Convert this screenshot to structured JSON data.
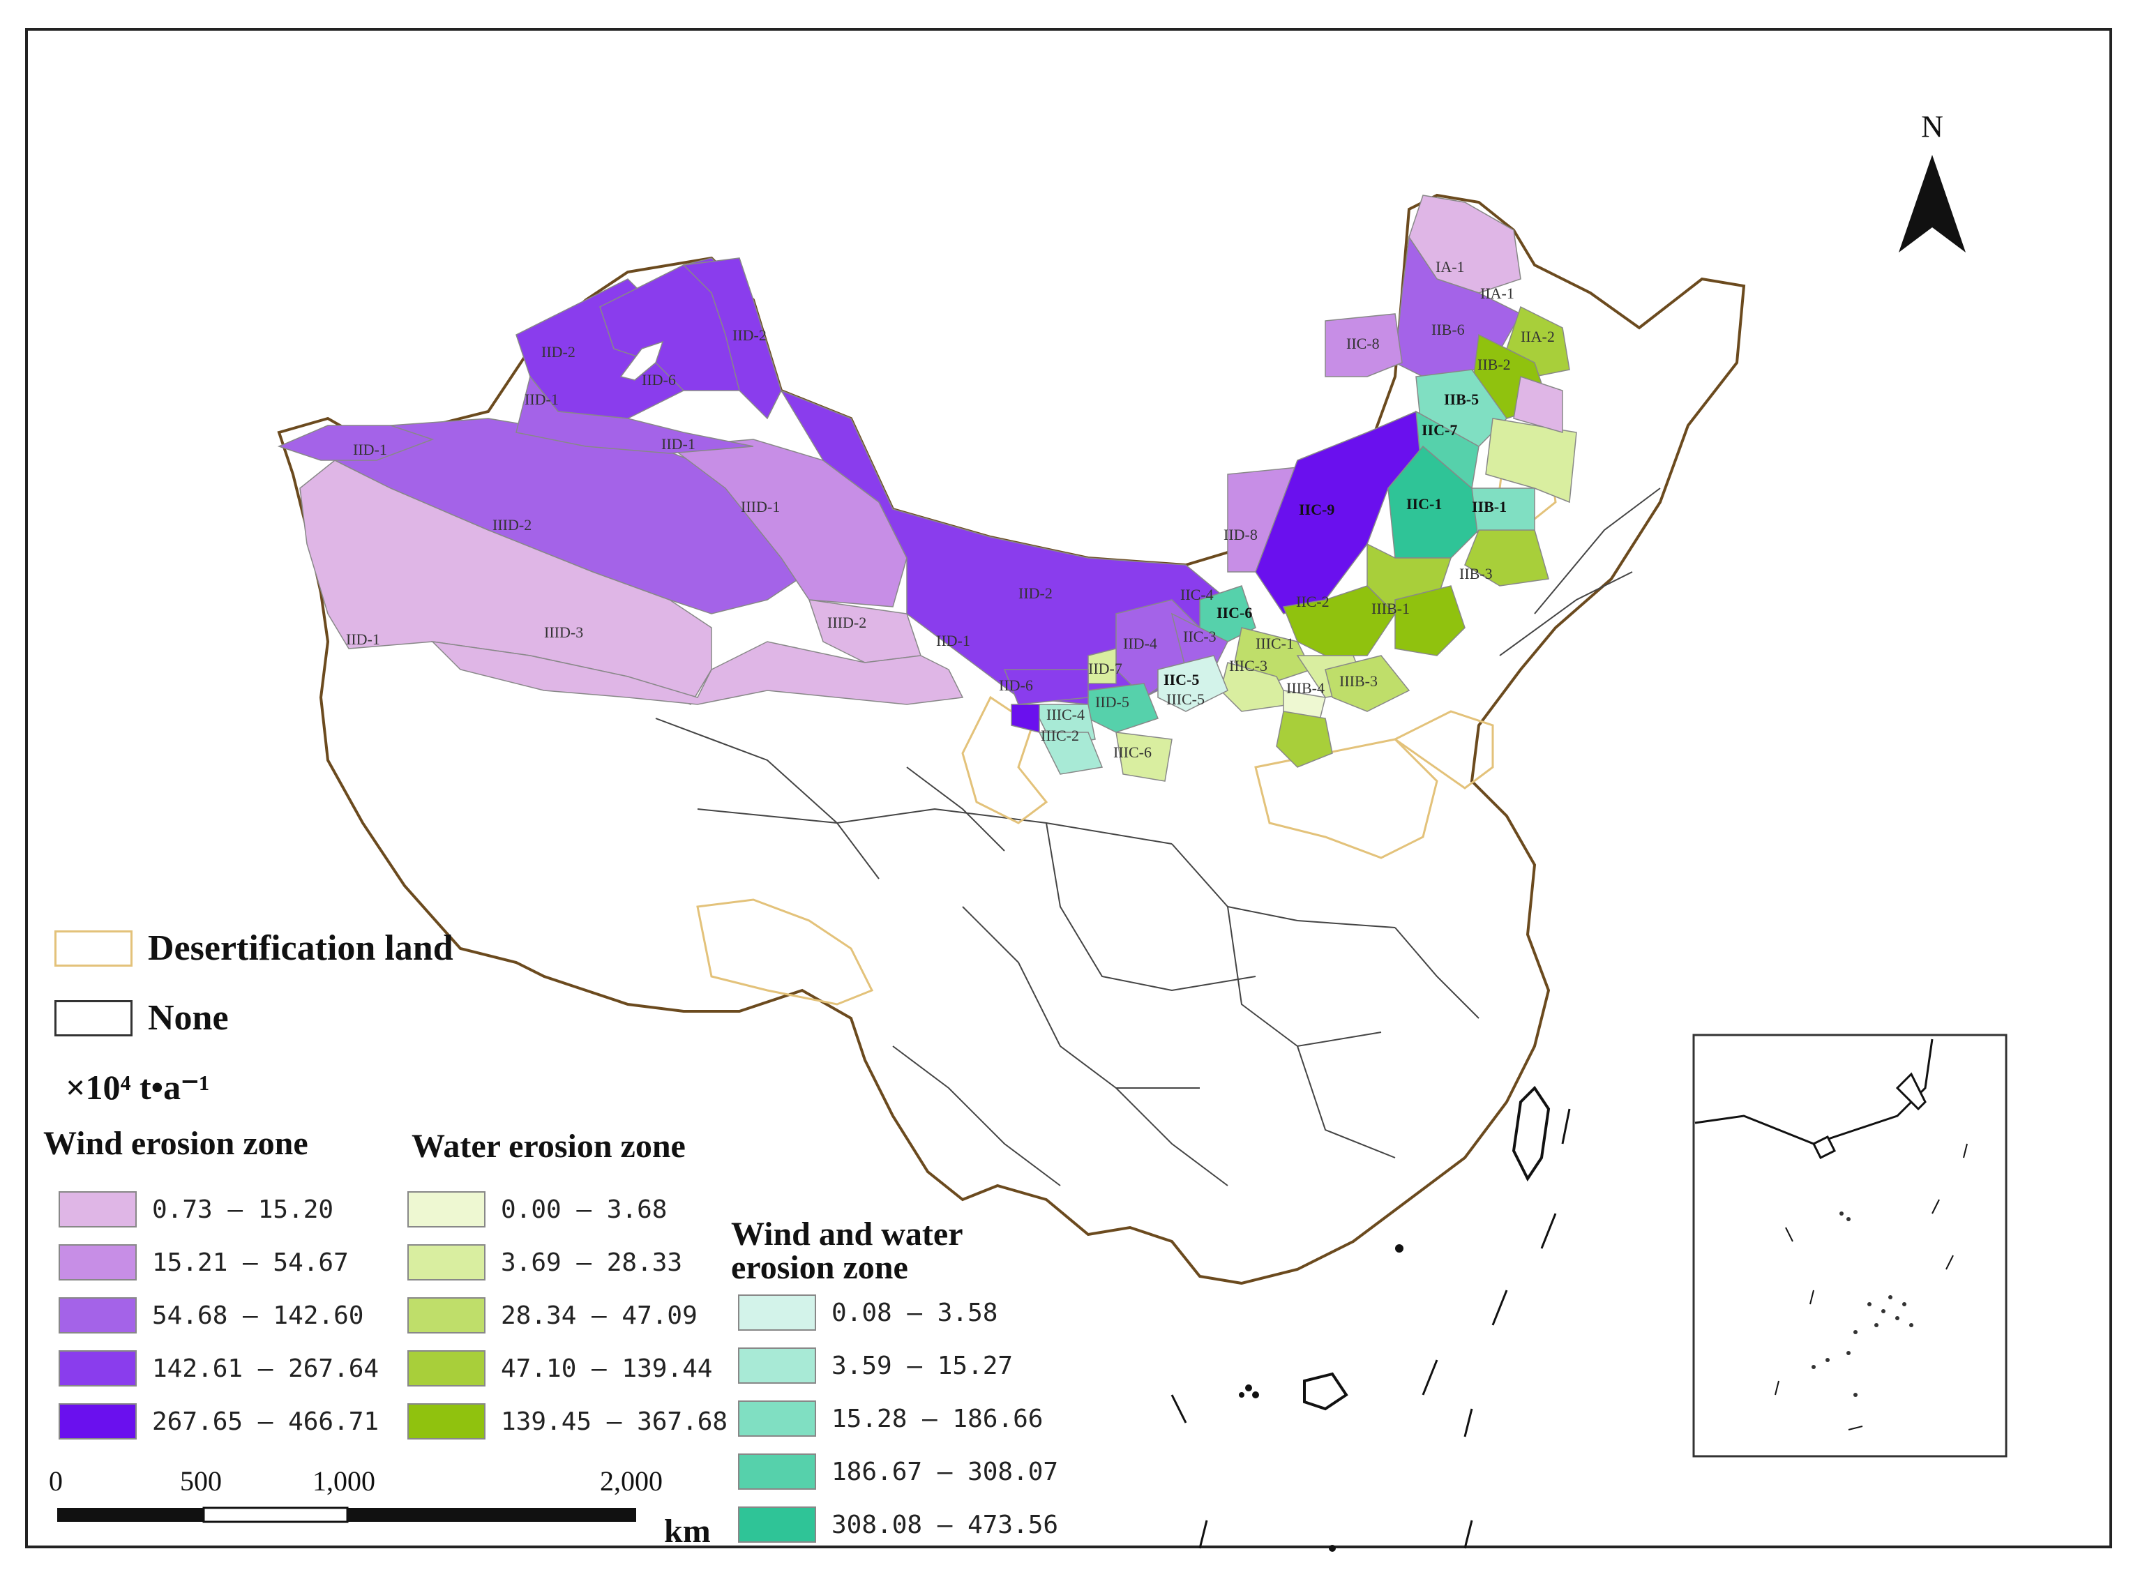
{
  "map": {
    "north_label": "N",
    "scale": {
      "ticks": [
        "0",
        "500",
        "1,000",
        "2,000"
      ],
      "unit": "km"
    },
    "line_legend": [
      {
        "label": "Desertification land",
        "stroke": "#e3c27a"
      },
      {
        "label": "None",
        "stroke": "#333333"
      }
    ],
    "unit_label": "×10⁴ t•a⁻¹",
    "wind_zone": {
      "title": "Wind erosion zone",
      "classes": [
        {
          "range": "0.73 – 15.20",
          "color": "#dfb6e6"
        },
        {
          "range": "15.21 – 54.67",
          "color": "#c78ee6"
        },
        {
          "range": "54.68 – 142.60",
          "color": "#a463e8"
        },
        {
          "range": "142.61 – 267.64",
          "color": "#8a3ded"
        },
        {
          "range": "267.65 – 466.71",
          "color": "#6a10ee"
        }
      ]
    },
    "water_zone": {
      "title": "Water erosion zone",
      "classes": [
        {
          "range": "0.00 – 3.68",
          "color": "#eef8d2"
        },
        {
          "range": "3.69 – 28.33",
          "color": "#d9eea0"
        },
        {
          "range": "28.34 – 47.09",
          "color": "#bfde6a"
        },
        {
          "range": "47.10 – 139.44",
          "color": "#a8cf3a"
        },
        {
          "range": "139.45 – 367.68",
          "color": "#90c20e"
        }
      ]
    },
    "wind_water_zone": {
      "title": "Wind and water erosion zone",
      "classes": [
        {
          "range": "0.08 – 3.58",
          "color": "#d3f3ea"
        },
        {
          "range": "3.59 – 15.27",
          "color": "#a8ead6"
        },
        {
          "range": "15.28 – 186.66",
          "color": "#80dfc2"
        },
        {
          "range": "186.67 – 308.07",
          "color": "#56d1ab"
        },
        {
          "range": "308.08 – 473.56",
          "color": "#2fc497"
        }
      ]
    },
    "zone_labels": [
      {
        "text": "IID-2",
        "cls": 3
      },
      {
        "text": "IID-6",
        "cls": 3
      },
      {
        "text": "IID-2",
        "cls": 3
      },
      {
        "text": "IID-1",
        "cls": 2
      },
      {
        "text": "IID-1",
        "cls": 2
      },
      {
        "text": "IID-1",
        "cls": 2
      },
      {
        "text": "IIID-2",
        "cls": 2
      },
      {
        "text": "IIID-1",
        "cls": 1
      },
      {
        "text": "IIID-3",
        "cls": 0
      },
      {
        "text": "IIID-2",
        "cls": 0
      },
      {
        "text": "IID-1",
        "cls": 0
      },
      {
        "text": "IID-2",
        "cls": 3
      },
      {
        "text": "IID-8",
        "cls": 1
      },
      {
        "text": "IIC-9",
        "cls": 4
      },
      {
        "text": "IIC-8",
        "cls": 1
      },
      {
        "text": "IIB-6",
        "cls": 2
      },
      {
        "text": "IA-1",
        "cls": 0
      },
      {
        "text": "IIA-1",
        "cls": 0
      },
      {
        "text": "IIA-2",
        "cls": 0
      },
      {
        "text": "IIB-2",
        "cls": 0
      },
      {
        "text": "IIB-5",
        "cls": 0
      },
      {
        "text": "IIC-7",
        "cls": 0
      },
      {
        "text": "IIC-1",
        "cls": 0
      },
      {
        "text": "IIB-1",
        "cls": 0
      },
      {
        "text": "IIB-3",
        "cls": 0
      },
      {
        "text": "IIIB-1",
        "cls": 0
      },
      {
        "text": "IIC-2",
        "cls": 0
      },
      {
        "text": "IIC-6",
        "cls": 0
      },
      {
        "text": "IIC-3",
        "cls": 0
      },
      {
        "text": "IIC-5",
        "cls": 0
      },
      {
        "text": "IIIC-5",
        "cls": 0
      },
      {
        "text": "IIIC-3",
        "cls": 0
      },
      {
        "text": "IIIC-4",
        "cls": 0
      },
      {
        "text": "IIIC-2",
        "cls": 0
      },
      {
        "text": "IIIC-6",
        "cls": 0
      },
      {
        "text": "IID-4",
        "cls": 0
      },
      {
        "text": "IID-5",
        "cls": 0
      },
      {
        "text": "IID-6",
        "cls": 0
      },
      {
        "text": "IID-7",
        "cls": 0
      },
      {
        "text": "IIIB-4",
        "cls": 0
      },
      {
        "text": "IIIB-3",
        "cls": 0
      },
      {
        "text": "IIIC-1",
        "cls": 0
      },
      {
        "text": "IID-1",
        "cls": 0
      },
      {
        "text": "IIC-4",
        "cls": 0
      }
    ]
  }
}
